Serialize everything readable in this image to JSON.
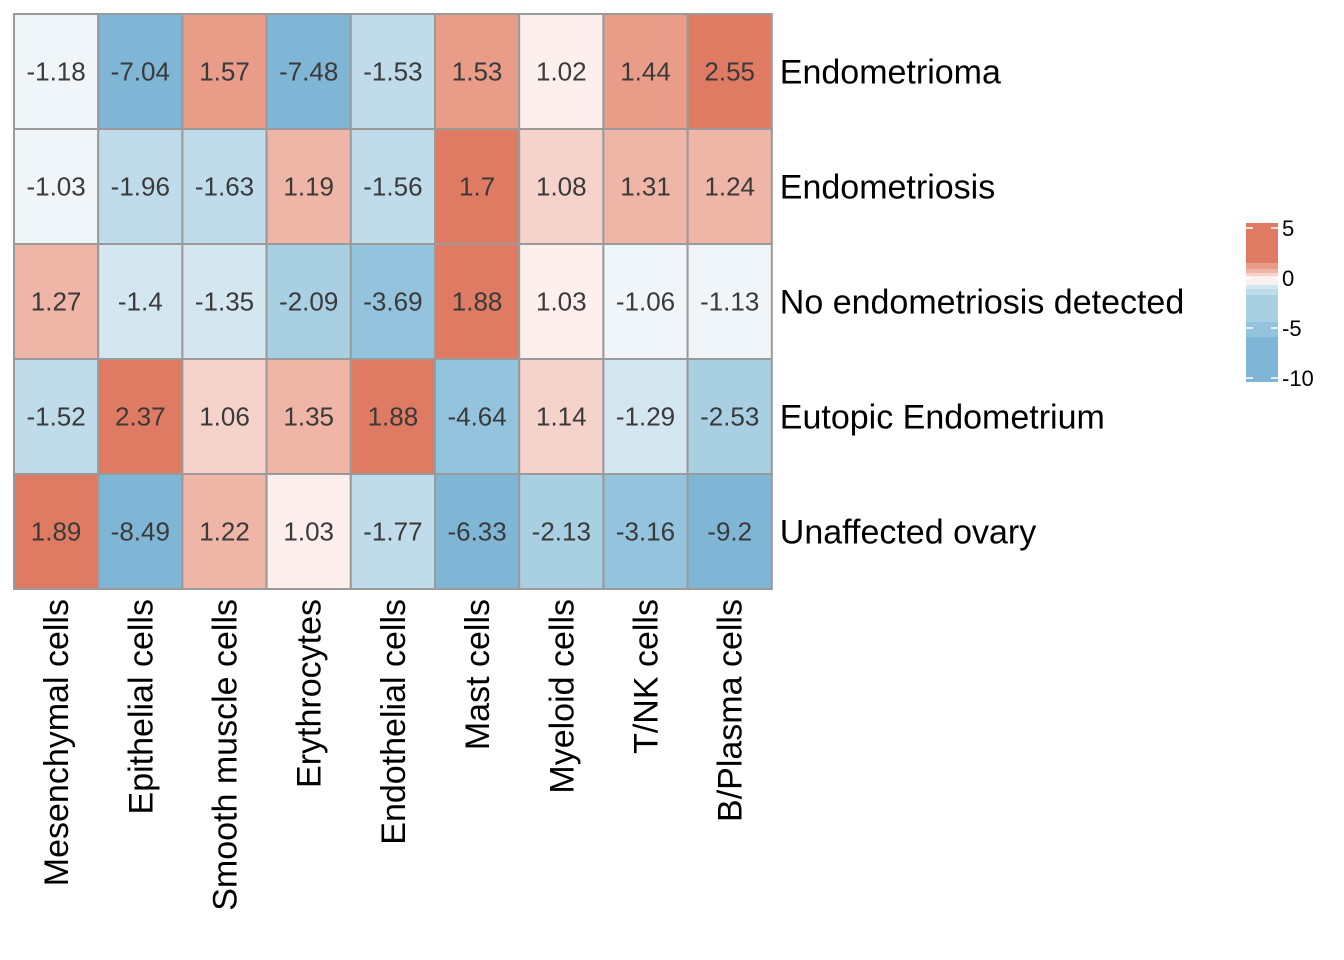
{
  "chart_data": {
    "type": "heatmap",
    "title": "",
    "xlabel": "",
    "ylabel": "",
    "rows": [
      "Endometrioma",
      "Endometriosis",
      "No endometriosis detected",
      "Eutopic Endometrium",
      "Unaffected ovary"
    ],
    "columns": [
      "Mesenchymal cells",
      "Epithelial cells",
      "Smooth muscle cells",
      "Erythrocytes",
      "Endothelial cells",
      "Mast cells",
      "Myeloid cells",
      "T/NK cells",
      "B/Plasma cells"
    ],
    "values": [
      [
        -1.18,
        -7.04,
        1.57,
        -7.48,
        -1.53,
        1.53,
        1.02,
        1.44,
        2.55
      ],
      [
        -1.03,
        -1.96,
        -1.63,
        1.19,
        -1.56,
        1.7,
        1.08,
        1.31,
        1.24
      ],
      [
        1.27,
        -1.4,
        -1.35,
        -2.09,
        -3.69,
        1.88,
        1.03,
        -1.06,
        -1.13
      ],
      [
        -1.52,
        2.37,
        1.06,
        1.35,
        1.88,
        -4.64,
        1.14,
        -1.29,
        -2.53
      ],
      [
        1.89,
        -8.49,
        1.22,
        1.03,
        -1.77,
        -6.33,
        -2.13,
        -3.16,
        -9.2
      ]
    ],
    "cell_labels": [
      [
        "-1.18",
        "-7.04",
        "1.57",
        "-7.48",
        "-1.53",
        "1.53",
        "1.02",
        "1.44",
        "2.55"
      ],
      [
        "-1.03",
        "-1.96",
        "-1.63",
        "1.19",
        "-1.56",
        "1.7",
        "1.08",
        "1.31",
        "1.24"
      ],
      [
        "1.27",
        "-1.4",
        "-1.35",
        "-2.09",
        "-3.69",
        "1.88",
        "1.03",
        "-1.06",
        "-1.13"
      ],
      [
        "-1.52",
        "2.37",
        "1.06",
        "1.35",
        "1.88",
        "-4.64",
        "1.14",
        "-1.29",
        "-2.53"
      ],
      [
        "1.89",
        "-8.49",
        "1.22",
        "1.03",
        "-1.77",
        "-6.33",
        "-2.13",
        "-3.16",
        "-9.2"
      ]
    ],
    "colors": {
      "high": "#e07b63",
      "mid": "#fdf3f1",
      "low": "#7fb6d5",
      "border": "#9a9a9a"
    },
    "color_breaks": [
      {
        "max": -5,
        "color": "#7fb6d5"
      },
      {
        "max": -3,
        "color": "#94c3dd"
      },
      {
        "max": -2,
        "color": "#a9cfe3"
      },
      {
        "max": -1.5,
        "color": "#c0dbea"
      },
      {
        "max": -1.25,
        "color": "#d4e6f0"
      },
      {
        "max": -1.0,
        "color": "#f0f5f9"
      },
      {
        "max": 1.05,
        "color": "#fcefec"
      },
      {
        "max": 1.15,
        "color": "#f6d3ca"
      },
      {
        "max": 1.4,
        "color": "#efb5a6"
      },
      {
        "max": 1.6,
        "color": "#e99d89"
      },
      {
        "max": 100,
        "color": "#e07b63"
      }
    ],
    "legend": {
      "position": "right",
      "ticks": [
        {
          "value": 5,
          "label": "5"
        },
        {
          "value": 0,
          "label": "0"
        },
        {
          "value": -5,
          "label": "-5"
        },
        {
          "value": -10,
          "label": "-10"
        }
      ],
      "bands": [
        {
          "from": 5.5,
          "to": 1.5,
          "color": "#e07b63"
        },
        {
          "from": 1.5,
          "to": 0.9,
          "color": "#e99d89"
        },
        {
          "from": 0.9,
          "to": 0.5,
          "color": "#efb5a6"
        },
        {
          "from": 0.5,
          "to": 0.2,
          "color": "#f6d3ca"
        },
        {
          "from": 0.2,
          "to": -0.4,
          "color": "#fcefec"
        },
        {
          "from": -0.4,
          "to": -0.7,
          "color": "#f0f5f9"
        },
        {
          "from": -0.7,
          "to": -1.1,
          "color": "#d4e6f0"
        },
        {
          "from": -1.1,
          "to": -1.7,
          "color": "#c0dbea"
        },
        {
          "from": -1.7,
          "to": -4.4,
          "color": "#a9cfe3"
        },
        {
          "from": -4.4,
          "to": -5.9,
          "color": "#94c3dd"
        },
        {
          "from": -5.9,
          "to": -10.4,
          "color": "#7fb6d5"
        }
      ]
    }
  }
}
